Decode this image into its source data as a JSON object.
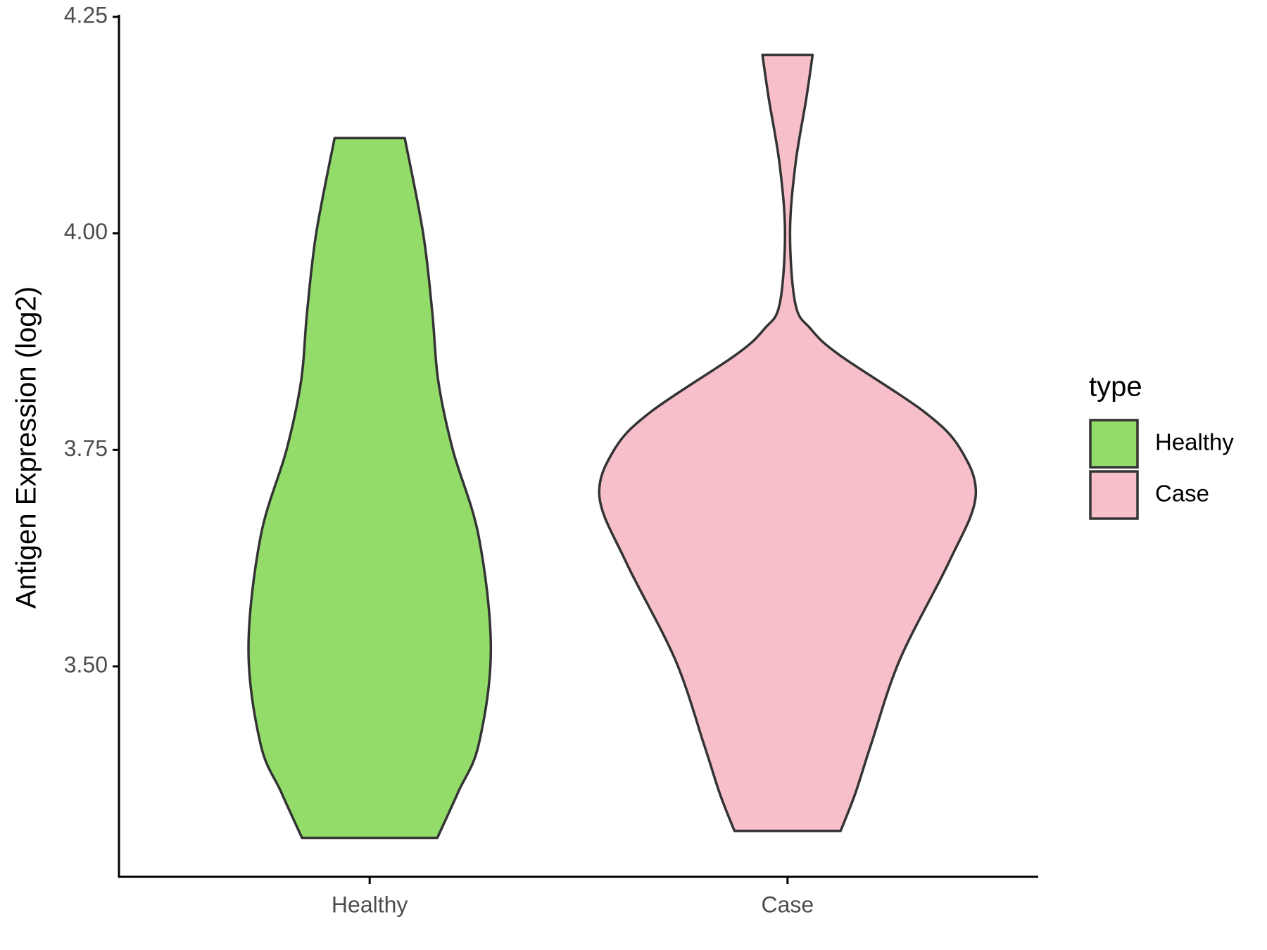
{
  "chart_data": {
    "type": "violin",
    "y_label": "Antigen Expression (log2)",
    "categories": [
      "Healthy",
      "Case"
    ],
    "legend_title": "type",
    "legend_position": "right",
    "ylim": [
      3.257,
      4.25
    ],
    "yticks": [
      {
        "value": 3.5,
        "label": "3.50"
      },
      3.75,
      {
        "value": 4.0,
        "label": "4.00"
      },
      4.25
    ],
    "grid": false,
    "series": [
      {
        "name": "Healthy",
        "color": "#93dc6a",
        "y": [
          4.11,
          4.0,
          3.908,
          3.83,
          3.75,
          3.65,
          3.52,
          3.41,
          3.355,
          3.302
        ],
        "half_widths": [
          0.084,
          0.128,
          0.15,
          0.164,
          0.199,
          0.261,
          0.29,
          0.261,
          0.212,
          0.162
        ]
      },
      {
        "name": "Case",
        "color": "#f7bfca",
        "y": [
          4.206,
          4.156,
          4.08,
          4.0,
          3.918,
          3.89,
          3.86,
          3.794,
          3.75,
          3.695,
          3.62,
          3.508,
          3.41,
          3.353,
          3.31
        ],
        "half_widths": [
          0.06,
          0.045,
          0.019,
          0.006,
          0.019,
          0.055,
          0.123,
          0.327,
          0.415,
          0.45,
          0.386,
          0.269,
          0.2,
          0.162,
          0.127
        ]
      }
    ]
  }
}
